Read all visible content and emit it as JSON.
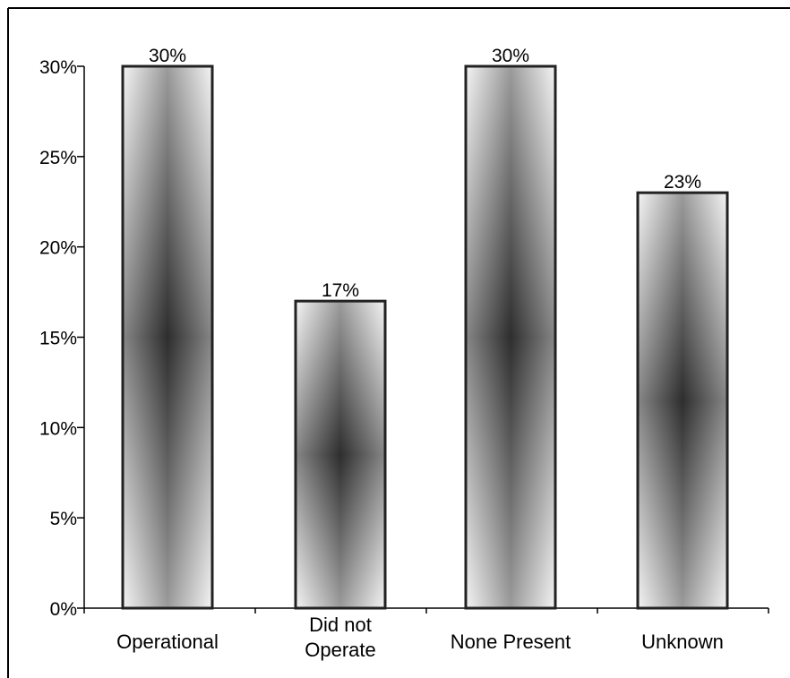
{
  "chart_data": {
    "type": "bar",
    "categories": [
      "Operational",
      "Did not\nOperate",
      "None Present",
      "Unknown"
    ],
    "values": [
      30,
      17,
      30,
      23
    ],
    "data_labels": [
      "30%",
      "17%",
      "30%",
      "23%"
    ],
    "title": "",
    "xlabel": "",
    "ylabel": "",
    "ylim": [
      0,
      30
    ],
    "yticks": [
      0,
      5,
      10,
      15,
      20,
      25,
      30
    ],
    "ytick_labels": [
      "0%",
      "5%",
      "10%",
      "15%",
      "20%",
      "25%",
      "30%"
    ],
    "grid": false,
    "legend": "none",
    "colors": {
      "bar_dark": "#2e2e2e",
      "bar_light": "#f4f4f4",
      "bar_stroke": "#222222",
      "axis": "#000000",
      "frame": "#000000"
    }
  }
}
